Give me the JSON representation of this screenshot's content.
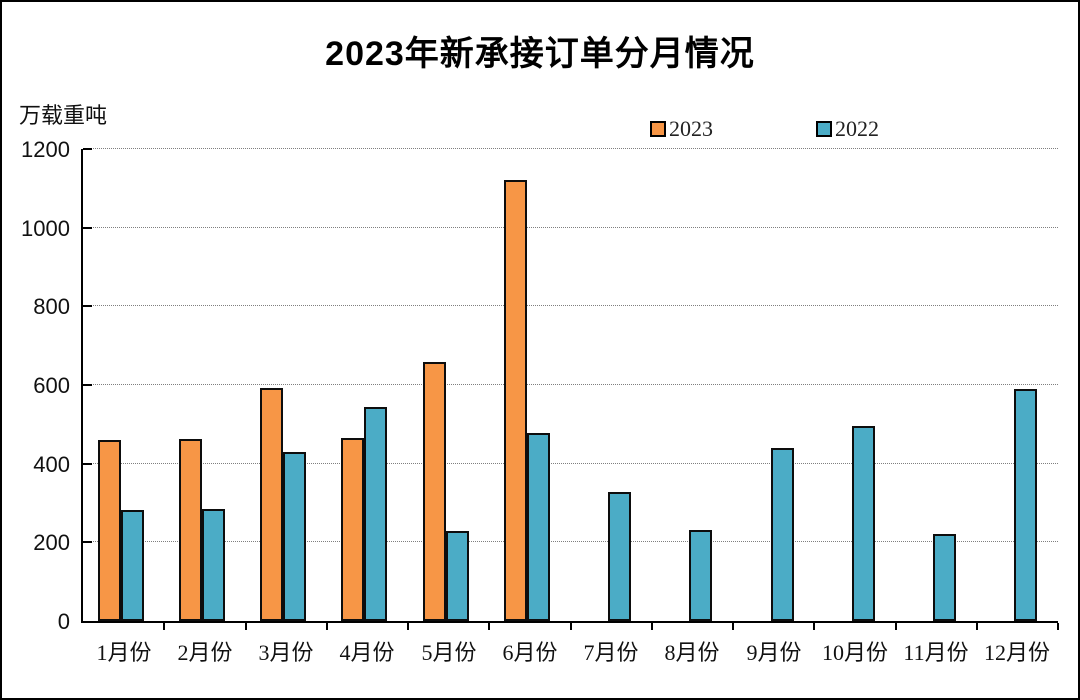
{
  "chart_data": {
    "type": "bar",
    "title": "2023年新承接订单分月情况",
    "unit_label": "万载重吨",
    "categories": [
      "1月份",
      "2月份",
      "3月份",
      "4月份",
      "5月份",
      "6月份",
      "7月份",
      "8月份",
      "9月份",
      "10月份",
      "11月份",
      "12月份"
    ],
    "series": [
      {
        "name": "2023",
        "color": "#F79646",
        "values": [
          460,
          463,
          592,
          466,
          659,
          1121,
          null,
          null,
          null,
          null,
          null,
          null
        ]
      },
      {
        "name": "2022",
        "color": "#4BACC6",
        "values": [
          281,
          284,
          429,
          545,
          230,
          477,
          327,
          232,
          439,
          496,
          220,
          591
        ]
      }
    ],
    "ylim": [
      0,
      1200
    ],
    "ytick_step": 200,
    "yticks": [
      "0",
      "200",
      "400",
      "600",
      "800",
      "1000",
      "1200"
    ],
    "grid": "horizontal-dotted",
    "legend_position": "top-center-right-above-plot",
    "bar_border_color": "#0d0d0d",
    "axis_color": "#000000"
  }
}
